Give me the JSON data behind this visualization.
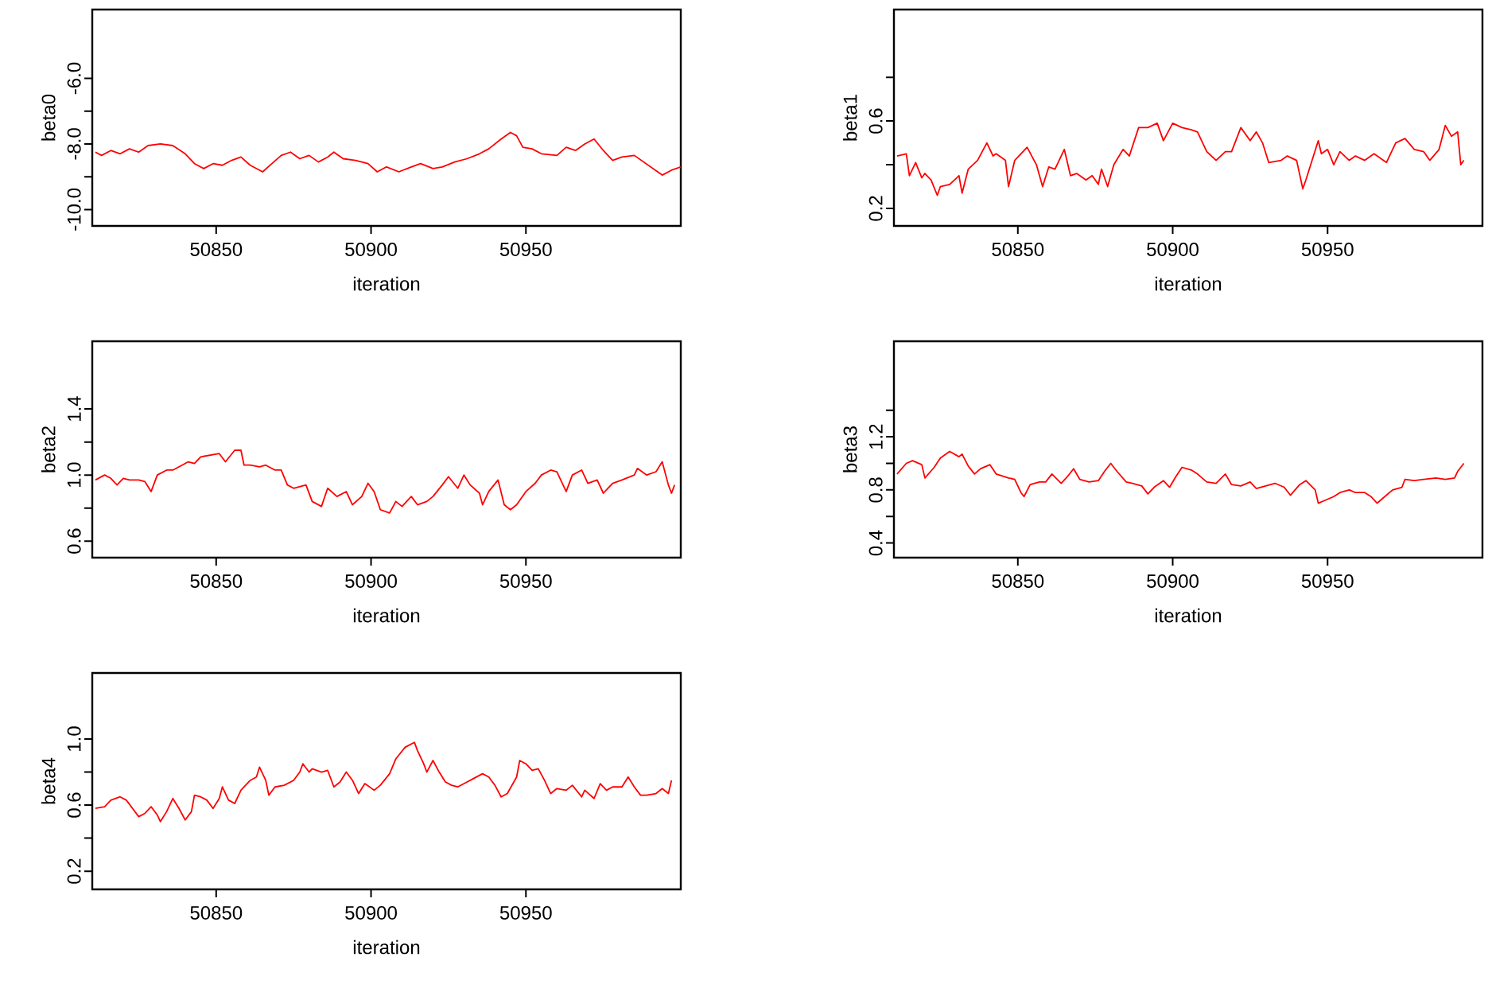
{
  "chart_data": [
    {
      "type": "line",
      "xlabel": "iteration",
      "ylabel": "beta0",
      "color": "#ff0000",
      "xlim": [
        50810,
        51000
      ],
      "xticks": [
        50850,
        50900,
        50950
      ],
      "ylim": [
        -10.5,
        -3.9
      ],
      "yticks": [
        {
          "value": -10,
          "label": "-10.0"
        },
        {
          "value": -9,
          "label": null
        },
        {
          "value": -8,
          "label": "-8.0"
        },
        {
          "value": -7,
          "label": null
        },
        {
          "value": -6,
          "label": "-6.0"
        }
      ],
      "x": [
        50811,
        50813,
        50816,
        50819,
        50822,
        50825,
        50828,
        50832,
        50836,
        50840,
        50843,
        50846,
        50849,
        50852,
        50855,
        50858,
        50861,
        50865,
        50868,
        50871,
        50874,
        50877,
        50880,
        50883,
        50886,
        50888,
        50891,
        50895,
        50899,
        50902,
        50905,
        50909,
        50913,
        50916,
        50920,
        50923,
        50927,
        50931,
        50935,
        50938,
        50942,
        50945,
        50947,
        50949,
        50952,
        50955,
        50960,
        50963,
        50966,
        50969,
        50972,
        50975,
        50978,
        50981,
        50985,
        50988,
        50991,
        50994,
        50997,
        51000
      ],
      "values": [
        -8.25,
        -8.35,
        -8.2,
        -8.3,
        -8.15,
        -8.25,
        -8.05,
        -8.0,
        -8.05,
        -8.3,
        -8.6,
        -8.75,
        -8.6,
        -8.65,
        -8.5,
        -8.4,
        -8.65,
        -8.85,
        -8.6,
        -8.35,
        -8.25,
        -8.45,
        -8.35,
        -8.55,
        -8.4,
        -8.25,
        -8.45,
        -8.5,
        -8.6,
        -8.85,
        -8.7,
        -8.85,
        -8.7,
        -8.6,
        -8.75,
        -8.7,
        -8.55,
        -8.45,
        -8.3,
        -8.15,
        -7.85,
        -7.65,
        -7.75,
        -8.1,
        -8.15,
        -8.3,
        -8.35,
        -8.1,
        -8.2,
        -8.0,
        -7.85,
        -8.2,
        -8.5,
        -8.4,
        -8.35,
        -8.55,
        -8.75,
        -8.95,
        -8.8,
        -8.7
      ]
    },
    {
      "type": "line",
      "xlabel": "iteration",
      "ylabel": "beta1",
      "color": "#ff0000",
      "xlim": [
        50810,
        51000
      ],
      "xticks": [
        50850,
        50900,
        50950
      ],
      "ylim": [
        0.12,
        1.11
      ],
      "yticks": [
        0.2,
        {
          "value": 0.4,
          "label": null
        },
        0.6,
        {
          "value": 0.8,
          "label": null
        }
      ],
      "x": [
        50811,
        50814,
        50815,
        50817,
        50819,
        50820,
        50822,
        50824,
        50825,
        50828,
        50831,
        50832,
        50834,
        50837,
        50840,
        50842,
        50843,
        50846,
        50847,
        50849,
        50853,
        50856,
        50858,
        50860,
        50862,
        50865,
        50867,
        50869,
        50872,
        50874,
        50876,
        50877,
        50879,
        50881,
        50884,
        50886,
        50889,
        50892,
        50895,
        50897,
        50900,
        50903,
        50906,
        50908,
        50911,
        50914,
        50917,
        50919,
        50922,
        50925,
        50927,
        50929,
        50931,
        50935,
        50937,
        50940,
        50942,
        50943,
        50945,
        50947,
        50948,
        50950,
        50952,
        50954,
        50957,
        50959,
        50962,
        50965,
        50969,
        50972,
        50975,
        50978,
        50981,
        50983,
        50986,
        50988,
        50990,
        50992,
        50993,
        50994
      ],
      "values": [
        0.44,
        0.45,
        0.35,
        0.41,
        0.34,
        0.36,
        0.33,
        0.26,
        0.3,
        0.31,
        0.35,
        0.27,
        0.38,
        0.42,
        0.5,
        0.44,
        0.45,
        0.42,
        0.3,
        0.42,
        0.48,
        0.4,
        0.3,
        0.39,
        0.38,
        0.47,
        0.35,
        0.36,
        0.33,
        0.35,
        0.31,
        0.38,
        0.3,
        0.4,
        0.47,
        0.44,
        0.57,
        0.57,
        0.59,
        0.51,
        0.59,
        0.57,
        0.56,
        0.55,
        0.46,
        0.42,
        0.46,
        0.46,
        0.57,
        0.51,
        0.55,
        0.5,
        0.41,
        0.42,
        0.44,
        0.42,
        0.29,
        0.33,
        0.42,
        0.51,
        0.45,
        0.47,
        0.4,
        0.46,
        0.42,
        0.44,
        0.42,
        0.45,
        0.41,
        0.5,
        0.52,
        0.47,
        0.46,
        0.42,
        0.47,
        0.58,
        0.53,
        0.55,
        0.4,
        0.42
      ]
    },
    {
      "type": "line",
      "xlabel": "iteration",
      "ylabel": "beta2",
      "color": "#ff0000",
      "xlim": [
        50810,
        51000
      ],
      "xticks": [
        50850,
        50900,
        50950
      ],
      "ylim": [
        0.5,
        1.81
      ],
      "yticks": [
        0.6,
        {
          "value": 0.8,
          "label": null
        },
        {
          "value": 1.0,
          "label": "1.0"
        },
        {
          "value": 1.2,
          "label": null
        },
        1.4
      ],
      "x": [
        50811,
        50814,
        50816,
        50818,
        50820,
        50822,
        50825,
        50827,
        50829,
        50831,
        50834,
        50836,
        50839,
        50841,
        50843,
        50845,
        50848,
        50851,
        50853,
        50856,
        50858,
        50859,
        50861,
        50864,
        50866,
        50869,
        50871,
        50873,
        50875,
        50879,
        50881,
        50884,
        50886,
        50889,
        50892,
        50894,
        50897,
        50899,
        50901,
        50903,
        50906,
        50908,
        50910,
        50913,
        50915,
        50918,
        50920,
        50923,
        50925,
        50928,
        50930,
        50932,
        50935,
        50936,
        50938,
        50941,
        50943,
        50945,
        50947,
        50950,
        50953,
        50955,
        50958,
        50960,
        50963,
        50965,
        50968,
        50970,
        50973,
        50975,
        50978,
        50981,
        50985,
        50986,
        50989,
        50992,
        50994,
        50996,
        50997,
        50998
      ],
      "values": [
        0.97,
        1.0,
        0.98,
        0.94,
        0.98,
        0.97,
        0.97,
        0.96,
        0.9,
        1.0,
        1.03,
        1.03,
        1.06,
        1.08,
        1.07,
        1.11,
        1.12,
        1.13,
        1.08,
        1.15,
        1.15,
        1.06,
        1.06,
        1.05,
        1.06,
        1.03,
        1.03,
        0.94,
        0.92,
        0.94,
        0.84,
        0.81,
        0.92,
        0.87,
        0.9,
        0.82,
        0.87,
        0.95,
        0.9,
        0.79,
        0.77,
        0.84,
        0.81,
        0.87,
        0.82,
        0.84,
        0.87,
        0.94,
        0.99,
        0.92,
        1.0,
        0.94,
        0.89,
        0.82,
        0.9,
        0.97,
        0.82,
        0.79,
        0.82,
        0.9,
        0.95,
        1.0,
        1.03,
        1.02,
        0.9,
        1.0,
        1.03,
        0.95,
        0.97,
        0.89,
        0.95,
        0.97,
        1.0,
        1.04,
        1.0,
        1.02,
        1.08,
        0.94,
        0.89,
        0.94
      ]
    },
    {
      "type": "line",
      "xlabel": "iteration",
      "ylabel": "beta3",
      "color": "#ff0000",
      "xlim": [
        50810,
        51000
      ],
      "xticks": [
        50850,
        50900,
        50950
      ],
      "ylim": [
        0.29,
        1.92
      ],
      "yticks": [
        0.4,
        {
          "value": 0.6,
          "label": null
        },
        0.8,
        {
          "value": 1.0,
          "label": null
        },
        1.2,
        {
          "value": 1.4,
          "label": null
        }
      ],
      "x": [
        50811,
        50814,
        50816,
        50819,
        50820,
        50823,
        50825,
        50828,
        50831,
        50832,
        50834,
        50836,
        50838,
        50841,
        50843,
        50847,
        50849,
        50851,
        50852,
        50854,
        50857,
        50859,
        50861,
        50864,
        50866,
        50868,
        50870,
        50873,
        50876,
        50878,
        50880,
        50882,
        50885,
        50887,
        50890,
        50892,
        50894,
        50897,
        50899,
        50901,
        50903,
        50906,
        50908,
        50911,
        50914,
        50917,
        50919,
        50922,
        50925,
        50927,
        50930,
        50933,
        50936,
        50938,
        50941,
        50943,
        50946,
        50947,
        50949,
        50952,
        50954,
        50957,
        50959,
        50962,
        50964,
        50966,
        50969,
        50971,
        50974,
        50975,
        50978,
        50981,
        50985,
        50988,
        50991,
        50992,
        50994
      ],
      "values": [
        0.92,
        1.0,
        1.02,
        0.99,
        0.89,
        0.97,
        1.04,
        1.09,
        1.05,
        1.07,
        0.98,
        0.92,
        0.96,
        0.99,
        0.92,
        0.89,
        0.88,
        0.78,
        0.75,
        0.84,
        0.86,
        0.86,
        0.92,
        0.85,
        0.9,
        0.96,
        0.88,
        0.86,
        0.87,
        0.94,
        1.0,
        0.94,
        0.86,
        0.85,
        0.83,
        0.77,
        0.82,
        0.87,
        0.82,
        0.9,
        0.97,
        0.95,
        0.92,
        0.86,
        0.85,
        0.92,
        0.84,
        0.83,
        0.86,
        0.81,
        0.83,
        0.85,
        0.82,
        0.76,
        0.84,
        0.87,
        0.8,
        0.7,
        0.72,
        0.75,
        0.78,
        0.8,
        0.78,
        0.78,
        0.75,
        0.7,
        0.76,
        0.8,
        0.82,
        0.88,
        0.87,
        0.88,
        0.89,
        0.88,
        0.89,
        0.94,
        1.0
      ]
    },
    {
      "type": "line",
      "xlabel": "iteration",
      "ylabel": "beta4",
      "color": "#ff0000",
      "xlim": [
        50810,
        51000
      ],
      "xticks": [
        50850,
        50900,
        50950
      ],
      "ylim": [
        0.09,
        1.4
      ],
      "yticks": [
        0.2,
        {
          "value": 0.4,
          "label": null
        },
        0.6,
        {
          "value": 0.8,
          "label": null
        },
        {
          "value": 1.0,
          "label": "1.0"
        }
      ],
      "x": [
        50811,
        50814,
        50816,
        50819,
        50821,
        50823,
        50825,
        50827,
        50829,
        50831,
        50832,
        50834,
        50836,
        50838,
        50840,
        50842,
        50843,
        50845,
        50847,
        50849,
        50851,
        50852,
        50854,
        50856,
        50858,
        50861,
        50863,
        50864,
        50866,
        50867,
        50869,
        50872,
        50875,
        50877,
        50878,
        50880,
        50881,
        50884,
        50886,
        50888,
        50890,
        50892,
        50894,
        50896,
        50898,
        50901,
        50903,
        50906,
        50908,
        50911,
        50914,
        50915,
        50917,
        50918,
        50920,
        50922,
        50924,
        50926,
        50928,
        50931,
        50933,
        50936,
        50938,
        50940,
        50942,
        50944,
        50947,
        50948,
        50950,
        50952,
        50954,
        50956,
        50958,
        50960,
        50963,
        50965,
        50968,
        50969,
        50972,
        50974,
        50976,
        50978,
        50981,
        50983,
        50985,
        50987,
        50989,
        50992,
        50994,
        50996,
        50997
      ],
      "values": [
        0.58,
        0.59,
        0.63,
        0.65,
        0.63,
        0.58,
        0.53,
        0.55,
        0.59,
        0.54,
        0.5,
        0.56,
        0.64,
        0.58,
        0.51,
        0.56,
        0.66,
        0.65,
        0.63,
        0.58,
        0.64,
        0.71,
        0.63,
        0.61,
        0.69,
        0.75,
        0.77,
        0.83,
        0.75,
        0.66,
        0.71,
        0.72,
        0.75,
        0.8,
        0.85,
        0.8,
        0.82,
        0.8,
        0.81,
        0.71,
        0.74,
        0.8,
        0.75,
        0.67,
        0.73,
        0.69,
        0.72,
        0.79,
        0.88,
        0.95,
        0.98,
        0.93,
        0.85,
        0.8,
        0.87,
        0.8,
        0.74,
        0.72,
        0.71,
        0.74,
        0.76,
        0.79,
        0.77,
        0.72,
        0.65,
        0.67,
        0.77,
        0.87,
        0.85,
        0.81,
        0.82,
        0.75,
        0.67,
        0.7,
        0.69,
        0.72,
        0.65,
        0.69,
        0.64,
        0.73,
        0.69,
        0.71,
        0.71,
        0.77,
        0.71,
        0.66,
        0.66,
        0.67,
        0.7,
        0.67,
        0.75
      ]
    }
  ]
}
